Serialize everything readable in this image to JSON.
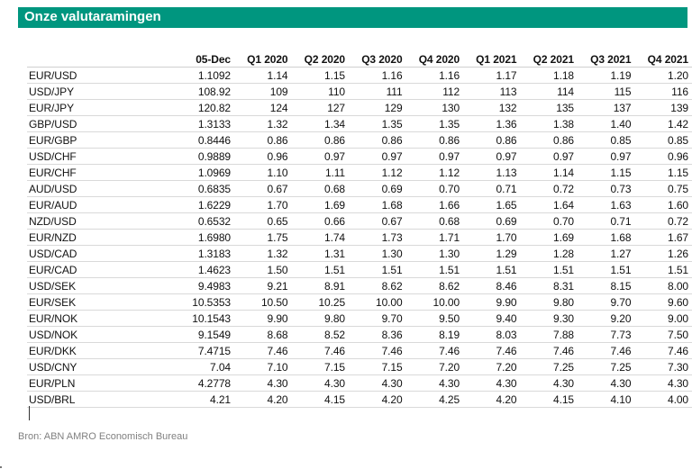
{
  "title": "Onze valutaramingen",
  "headers": [
    "",
    "05-Dec",
    "Q1 2020",
    "Q2 2020",
    "Q3 2020",
    "Q4 2020",
    "Q1 2021",
    "Q2 2021",
    "Q3 2021",
    "Q4 2021"
  ],
  "rows": [
    [
      "EUR/USD",
      "1.1092",
      "1.14",
      "1.15",
      "1.16",
      "1.16",
      "1.17",
      "1.18",
      "1.19",
      "1.20"
    ],
    [
      "USD/JPY",
      "108.92",
      "109",
      "110",
      "111",
      "112",
      "113",
      "114",
      "115",
      "116"
    ],
    [
      "EUR/JPY",
      "120.82",
      "124",
      "127",
      "129",
      "130",
      "132",
      "135",
      "137",
      "139"
    ],
    [
      "GBP/USD",
      "1.3133",
      "1.32",
      "1.34",
      "1.35",
      "1.35",
      "1.36",
      "1.38",
      "1.40",
      "1.42"
    ],
    [
      "EUR/GBP",
      "0.8446",
      "0.86",
      "0.86",
      "0.86",
      "0.86",
      "0.86",
      "0.86",
      "0.85",
      "0.85"
    ],
    [
      "USD/CHF",
      "0.9889",
      "0.96",
      "0.97",
      "0.97",
      "0.97",
      "0.97",
      "0.97",
      "0.97",
      "0.96"
    ],
    [
      "EUR/CHF",
      "1.0969",
      "1.10",
      "1.11",
      "1.12",
      "1.12",
      "1.13",
      "1.14",
      "1.15",
      "1.15"
    ],
    [
      "AUD/USD",
      "0.6835",
      "0.67",
      "0.68",
      "0.69",
      "0.70",
      "0.71",
      "0.72",
      "0.73",
      "0.75"
    ],
    [
      "EUR/AUD",
      "1.6229",
      "1.70",
      "1.69",
      "1.68",
      "1.66",
      "1.65",
      "1.64",
      "1.63",
      "1.60"
    ],
    [
      "NZD/USD",
      "0.6532",
      "0.65",
      "0.66",
      "0.67",
      "0.68",
      "0.69",
      "0.70",
      "0.71",
      "0.72"
    ],
    [
      "EUR/NZD",
      "1.6980",
      "1.75",
      "1.74",
      "1.73",
      "1.71",
      "1.70",
      "1.69",
      "1.68",
      "1.67"
    ],
    [
      "USD/CAD",
      "1.3183",
      "1.32",
      "1.31",
      "1.30",
      "1.30",
      "1.29",
      "1.28",
      "1.27",
      "1.26"
    ],
    [
      "EUR/CAD",
      "1.4623",
      "1.50",
      "1.51",
      "1.51",
      "1.51",
      "1.51",
      "1.51",
      "1.51",
      "1.51"
    ],
    [
      "USD/SEK",
      "9.4983",
      "9.21",
      "8.91",
      "8.62",
      "8.62",
      "8.46",
      "8.31",
      "8.15",
      "8.00"
    ],
    [
      "EUR/SEK",
      "10.5353",
      "10.50",
      "10.25",
      "10.00",
      "10.00",
      "9.90",
      "9.80",
      "9.70",
      "9.60"
    ],
    [
      "EUR/NOK",
      "10.1543",
      "9.90",
      "9.80",
      "9.70",
      "9.50",
      "9.40",
      "9.30",
      "9.20",
      "9.00"
    ],
    [
      "USD/NOK",
      "9.1549",
      "8.68",
      "8.52",
      "8.36",
      "8.19",
      "8.03",
      "7.88",
      "7.73",
      "7.50"
    ],
    [
      "EUR/DKK",
      "7.4715",
      "7.46",
      "7.46",
      "7.46",
      "7.46",
      "7.46",
      "7.46",
      "7.46",
      "7.46"
    ],
    [
      "USD/CNY",
      "7.04",
      "7.10",
      "7.15",
      "7.15",
      "7.20",
      "7.20",
      "7.25",
      "7.25",
      "7.30"
    ],
    [
      "EUR/PLN",
      "4.2778",
      "4.30",
      "4.30",
      "4.30",
      "4.30",
      "4.30",
      "4.30",
      "4.30",
      "4.30"
    ],
    [
      "USD/BRL",
      "4.21",
      "4.20",
      "4.15",
      "4.20",
      "4.25",
      "4.20",
      "4.15",
      "4.10",
      "4.00"
    ]
  ],
  "source": "Bron: ABN AMRO Economisch Bureau"
}
